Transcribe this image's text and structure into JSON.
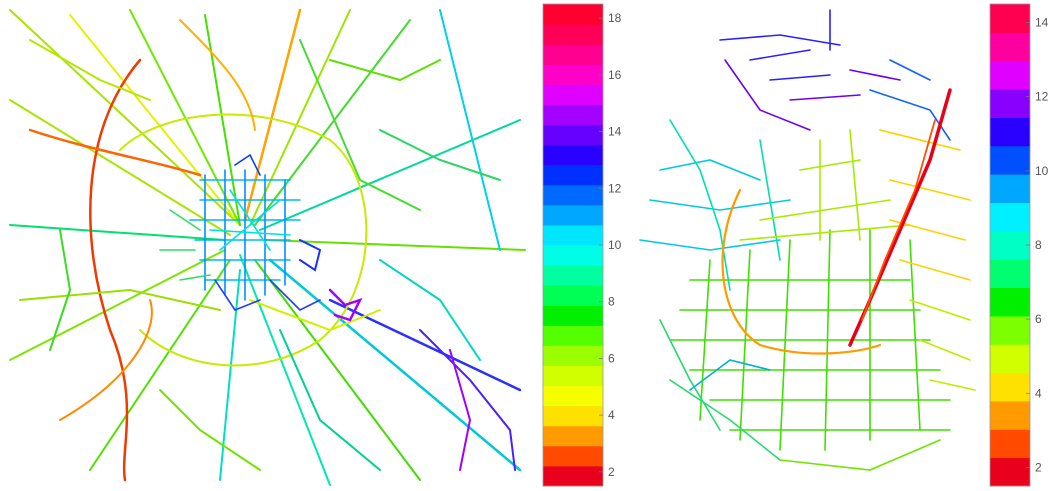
{
  "panels": [
    {
      "id": "left",
      "colorbar": {
        "ticks": [
          "2",
          "4",
          "6",
          "8",
          "10",
          "12",
          "14",
          "16",
          "18"
        ],
        "tick_values": [
          2,
          4,
          6,
          8,
          10,
          12,
          14,
          16,
          18
        ],
        "range": [
          1.5,
          18.5
        ],
        "colors": [
          "#e8001c",
          "#ff4a00",
          "#ff9a00",
          "#ffe100",
          "#f6ff00",
          "#d2ff00",
          "#9cff00",
          "#54ff00",
          "#00f000",
          "#00ff55",
          "#00ffa0",
          "#00fde8",
          "#00e6ff",
          "#00a7ff",
          "#0069ff",
          "#0030ff",
          "#2a00ff",
          "#6600ff",
          "#a300ff",
          "#e000ff",
          "#ff00c8",
          "#ff0090",
          "#ff0058",
          "#ff0030"
        ]
      }
    },
    {
      "id": "right",
      "colorbar": {
        "ticks": [
          "2",
          "4",
          "6",
          "8",
          "10",
          "12",
          "14"
        ],
        "tick_values": [
          2,
          4,
          6,
          8,
          10,
          12,
          14
        ],
        "range": [
          1.5,
          14.5
        ],
        "colors": [
          "#e8001c",
          "#ff4a00",
          "#ff9a00",
          "#ffe100",
          "#d2ff00",
          "#7cff00",
          "#00f000",
          "#00ff70",
          "#00ffc4",
          "#00f0ff",
          "#00a7ff",
          "#0050ff",
          "#2a00ff",
          "#8a00ff",
          "#e000ff",
          "#ff00a0",
          "#ff0050"
        ]
      }
    }
  ]
}
